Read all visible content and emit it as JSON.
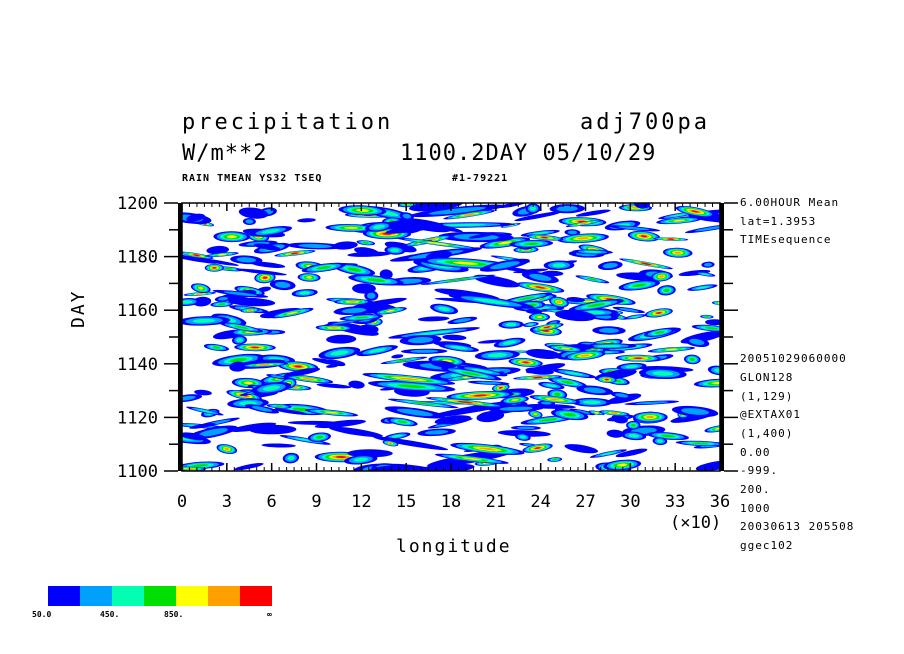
{
  "header": {
    "variable": "precipitation",
    "experiment": "adj700pa",
    "units": "W/m**2",
    "time_label": "1100.2DAY 05/10/29",
    "subtitle": "RAIN TMEAN YS32 TSEQ",
    "run_id": "#1-79221"
  },
  "side_info": [
    "6.00HOUR Mean",
    "lat=1.3953",
    "TIMEsequence",
    "20051029060000",
    "GLON128",
    "(1,129)",
    "@EXTAX01",
    "(1,400)",
    "0.00",
    "-999.",
    "200.",
    "1000",
    "20030613 205508",
    "ggec102"
  ],
  "colorbar": {
    "colors": [
      "#0000ff",
      "#00a0ff",
      "#00ffb0",
      "#00e000",
      "#ffff00",
      "#ffa000",
      "#ff0000"
    ],
    "labels": [
      "50.0",
      "450.",
      "850.",
      "∞"
    ]
  },
  "chart_data": {
    "type": "heatmap",
    "title": "precipitation",
    "xlabel": "longitude",
    "ylabel": "DAY",
    "x_multiplier_label": "(×10)",
    "xlim": [
      0,
      36
    ],
    "ylim": [
      1100,
      1200
    ],
    "xticks": [
      0,
      3,
      6,
      9,
      12,
      15,
      18,
      21,
      24,
      27,
      30,
      33,
      36
    ],
    "yticks": [
      1100,
      1120,
      1140,
      1160,
      1180,
      1200
    ],
    "contour_levels": [
      50,
      250,
      450,
      650,
      850,
      1050
    ],
    "grid": false,
    "legend_position": "bottom-left"
  }
}
